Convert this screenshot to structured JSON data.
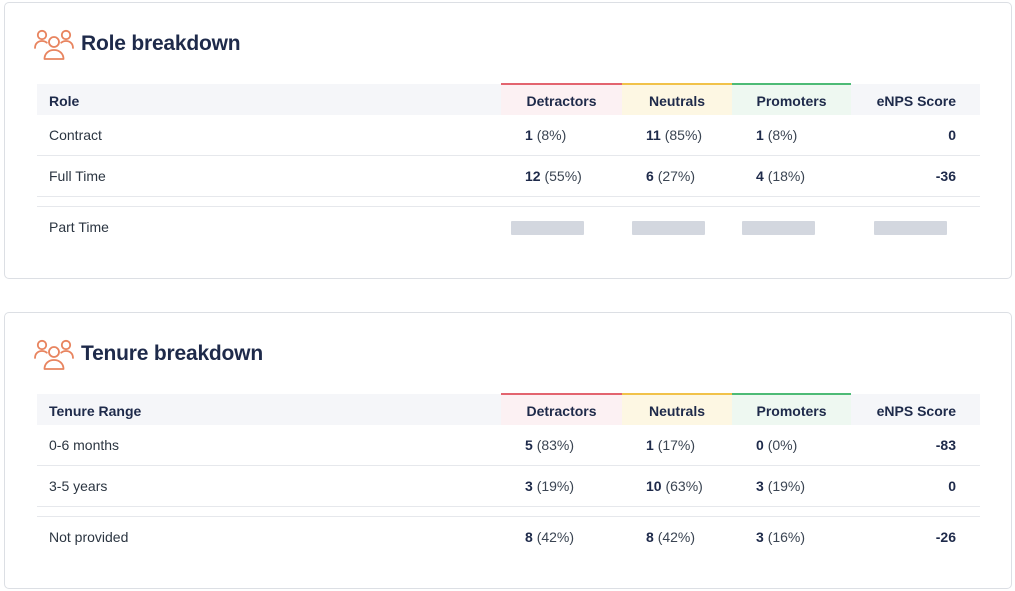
{
  "role_breakdown": {
    "title": "Role breakdown",
    "icon": "users-icon",
    "columns": {
      "label": "Role",
      "detractors": "Detractors",
      "neutrals": "Neutrals",
      "promoters": "Promoters",
      "enps": "eNPS Score"
    },
    "rows": [
      {
        "label": "Contract",
        "detractors": {
          "count": "1",
          "pct": "(8%)"
        },
        "neutrals": {
          "count": "11",
          "pct": "(85%)"
        },
        "promoters": {
          "count": "1",
          "pct": "(8%)"
        },
        "enps": "0"
      },
      {
        "label": "Full Time",
        "detractors": {
          "count": "12",
          "pct": "(55%)"
        },
        "neutrals": {
          "count": "6",
          "pct": "(27%)"
        },
        "promoters": {
          "count": "4",
          "pct": "(18%)"
        },
        "enps": "-36"
      },
      {
        "label": "Part Time",
        "loading": true
      }
    ]
  },
  "tenure_breakdown": {
    "title": "Tenure breakdown",
    "icon": "users-icon",
    "columns": {
      "label": "Tenure Range",
      "detractors": "Detractors",
      "neutrals": "Neutrals",
      "promoters": "Promoters",
      "enps": "eNPS Score"
    },
    "rows": [
      {
        "label": "0-6 months",
        "detractors": {
          "count": "5",
          "pct": "(83%)"
        },
        "neutrals": {
          "count": "1",
          "pct": "(17%)"
        },
        "promoters": {
          "count": "0",
          "pct": "(0%)"
        },
        "enps": "-83"
      },
      {
        "label": "3-5 years",
        "detractors": {
          "count": "3",
          "pct": "(19%)"
        },
        "neutrals": {
          "count": "10",
          "pct": "(63%)"
        },
        "promoters": {
          "count": "3",
          "pct": "(19%)"
        },
        "enps": "0"
      },
      {
        "label": "Not provided",
        "detractors": {
          "count": "8",
          "pct": "(42%)"
        },
        "neutrals": {
          "count": "8",
          "pct": "(42%)"
        },
        "promoters": {
          "count": "3",
          "pct": "(16%)"
        },
        "enps": "-26"
      }
    ]
  },
  "colors": {
    "detractors": "#e3646f",
    "neutrals": "#f1c24a",
    "promoters": "#4dbb76",
    "icon": "#e8845f",
    "title": "#1e2a4a"
  }
}
